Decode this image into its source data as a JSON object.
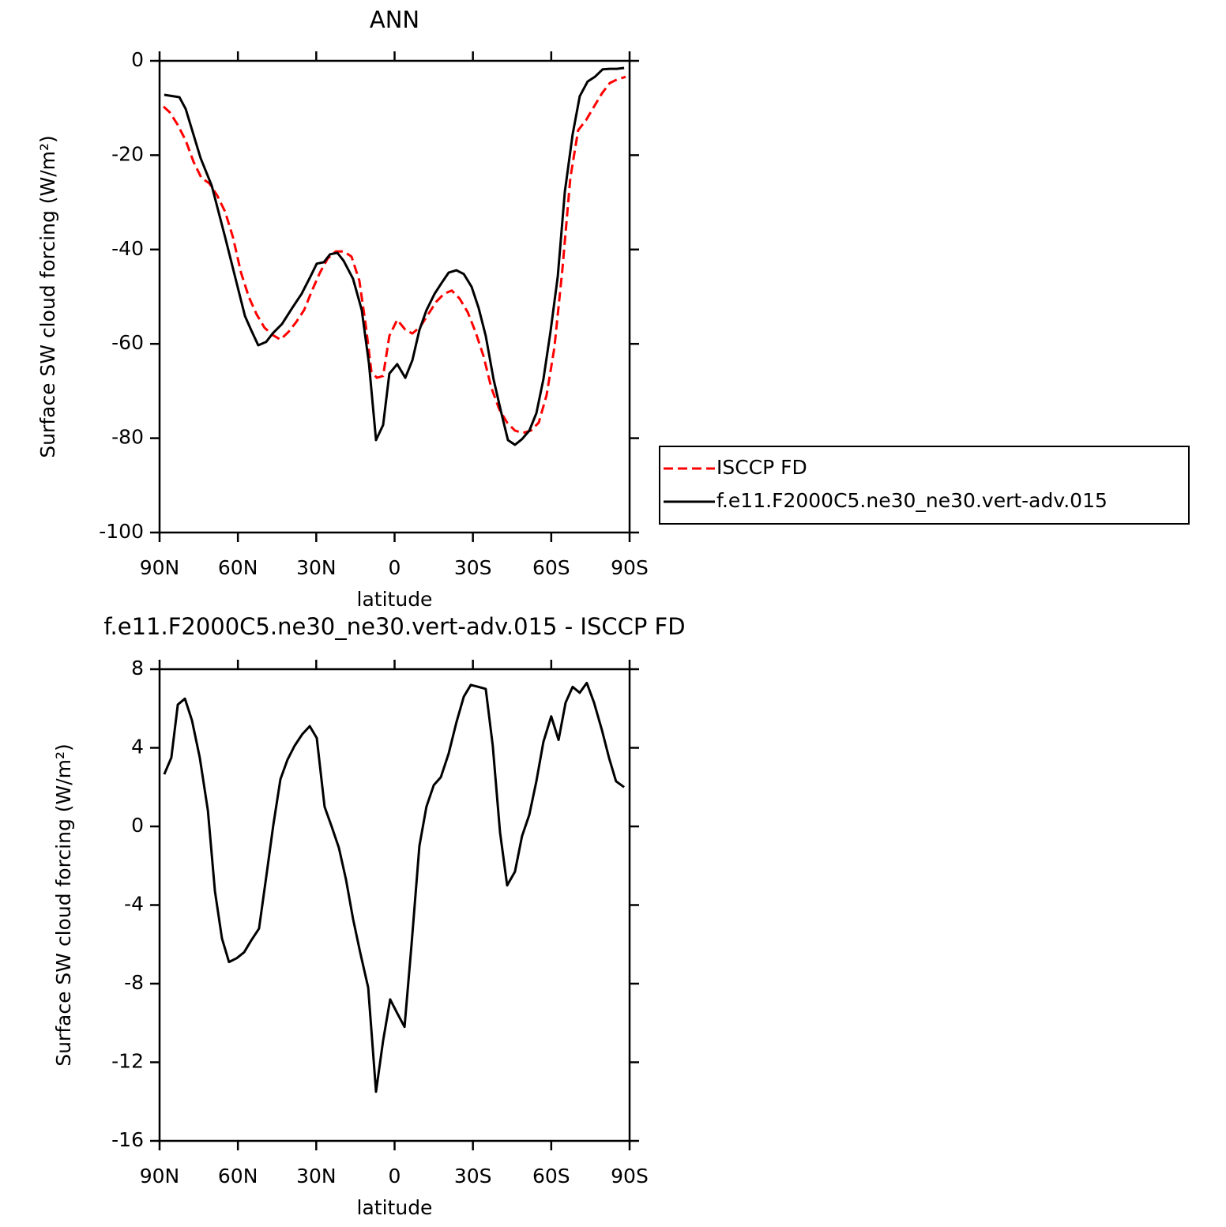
{
  "chart_data": [
    {
      "type": "line",
      "title": "ANN",
      "x_label": "latitude",
      "y_label": "Surface SW cloud forcing (W/m²)",
      "xlim": [
        90,
        -90
      ],
      "xticks": [
        {
          "value": 90,
          "label": "90N"
        },
        {
          "value": 60,
          "label": "60N"
        },
        {
          "value": 30,
          "label": "30N"
        },
        0,
        {
          "value": -30,
          "label": "30S"
        },
        {
          "value": -60,
          "label": "60S"
        },
        {
          "value": -90,
          "label": "90S"
        }
      ],
      "ylim": [
        -100,
        0
      ],
      "yticks": [
        -100,
        -80,
        -60,
        -40,
        -20,
        0
      ],
      "legend": "right",
      "series": [
        {
          "name": "ISCCP FD",
          "color": "#ff0000",
          "dash": true,
          "x": [
            88.5,
            86.1,
            83.0,
            80.0,
            77.0,
            74.0,
            70.9,
            67.9,
            64.9,
            61.9,
            58.8,
            55.8,
            52.8,
            49.8,
            46.7,
            43.7,
            40.7,
            37.7,
            34.6,
            31.6,
            28.6,
            25.6,
            22.5,
            19.5,
            16.5,
            13.5,
            11.1,
            8.9,
            6.8,
            4.4,
            2.0,
            -1.0,
            -4.1,
            -6.8,
            -9.8,
            -12.8,
            -15.9,
            -18.9,
            -21.9,
            -24.9,
            -28.0,
            -31.0,
            -34.0,
            -37.0,
            -40.1,
            -43.1,
            -46.1,
            -49.1,
            -52.2,
            -55.2,
            -58.2,
            -61.2,
            -64.3,
            -67.3,
            -70.3,
            -73.3,
            -76.4,
            -79.4,
            -82.4,
            -85.4,
            -88.5
          ],
          "values": [
            -9.7,
            -10.9,
            -13.6,
            -16.9,
            -21.4,
            -24.8,
            -26.0,
            -28.6,
            -32.0,
            -37.4,
            -44.9,
            -50.1,
            -53.8,
            -56.6,
            -58.1,
            -59.1,
            -57.5,
            -55.4,
            -52.8,
            -48.7,
            -44.9,
            -41.9,
            -40.4,
            -40.4,
            -41.5,
            -46.6,
            -55.8,
            -65.8,
            -67.2,
            -66.8,
            -58.3,
            -54.9,
            -57.0,
            -57.8,
            -56.4,
            -53.8,
            -51.1,
            -49.4,
            -48.7,
            -50.4,
            -53.3,
            -57.5,
            -62.5,
            -69.2,
            -73.9,
            -76.7,
            -78.4,
            -78.9,
            -78.4,
            -76.7,
            -70.9,
            -60.8,
            -44.1,
            -24.8,
            -14.7,
            -12.6,
            -9.7,
            -6.9,
            -4.7,
            -3.9,
            -3.4
          ]
        },
        {
          "name": "f.e11.F2000C5.ne30_ne30.vert-adv.015",
          "color": "#000000",
          "dash": false,
          "x": [
            88.2,
            82.4,
            80.0,
            74.3,
            70.0,
            64.9,
            57.3,
            54.9,
            52.2,
            49.2,
            46.7,
            43.1,
            39.2,
            35.6,
            32.2,
            29.8,
            27.1,
            24.7,
            21.9,
            19.5,
            15.9,
            12.6,
            9.8,
            7.1,
            4.4,
            2.0,
            -1.0,
            -4.1,
            -6.8,
            -9.5,
            -12.2,
            -15.3,
            -18.0,
            -20.7,
            -23.7,
            -26.5,
            -29.5,
            -32.2,
            -34.9,
            -37.9,
            -40.7,
            -43.4,
            -46.1,
            -48.8,
            -51.6,
            -54.3,
            -57.0,
            -59.7,
            -62.5,
            -65.2,
            -68.2,
            -70.9,
            -73.9,
            -76.7,
            -79.7,
            -82.4,
            -85.1,
            -87.9
          ],
          "values": [
            -7.2,
            -7.7,
            -10.2,
            -20.6,
            -26.5,
            -37.4,
            -54.1,
            -57.1,
            -60.3,
            -59.6,
            -57.8,
            -55.8,
            -52.4,
            -49.4,
            -45.7,
            -43.0,
            -42.7,
            -41.0,
            -40.7,
            -42.4,
            -46.2,
            -52.8,
            -64.2,
            -80.4,
            -77.2,
            -66.3,
            -64.3,
            -67.2,
            -63.5,
            -57.1,
            -52.9,
            -49.4,
            -47.1,
            -44.9,
            -44.4,
            -45.2,
            -47.9,
            -52.4,
            -58.3,
            -67.5,
            -74.2,
            -80.4,
            -81.4,
            -80.2,
            -78.4,
            -74.7,
            -67.5,
            -57.5,
            -45.7,
            -27.8,
            -15.6,
            -7.5,
            -4.4,
            -3.4,
            -1.8,
            -1.7,
            -1.7,
            -1.5
          ]
        }
      ]
    },
    {
      "type": "line",
      "title": "f.e11.F2000C5.ne30_ne30.vert-adv.015 - ISCCP FD",
      "x_label": "latitude",
      "y_label": "Surface SW cloud forcing (W/m²)",
      "xlim": [
        90,
        -90
      ],
      "xticks": [
        {
          "value": 90,
          "label": "90N"
        },
        {
          "value": 60,
          "label": "60N"
        },
        {
          "value": 30,
          "label": "30N"
        },
        0,
        {
          "value": -30,
          "label": "30S"
        },
        {
          "value": -60,
          "label": "60S"
        },
        {
          "value": -90,
          "label": "90S"
        }
      ],
      "ylim": [
        -16,
        8
      ],
      "yticks": [
        -16,
        -12,
        -8,
        -4,
        0,
        4,
        8
      ],
      "series": [
        {
          "color": "#000000",
          "dash": false,
          "x": [
            88.2,
            85.5,
            83.0,
            80.3,
            77.6,
            74.6,
            71.5,
            68.8,
            66.1,
            63.4,
            60.4,
            57.6,
            54.9,
            51.9,
            49.2,
            46.4,
            43.7,
            41.0,
            38.3,
            35.3,
            32.5,
            29.8,
            26.8,
            24.1,
            21.3,
            18.6,
            15.9,
            13.2,
            10.1,
            7.1,
            4.4,
            1.7,
            -1.0,
            -3.8,
            -6.5,
            -9.5,
            -12.2,
            -15.0,
            -17.7,
            -20.7,
            -23.7,
            -26.5,
            -29.2,
            -32.2,
            -34.9,
            -37.6,
            -40.4,
            -43.1,
            -46.1,
            -48.8,
            -51.6,
            -54.3,
            -57.0,
            -60.0,
            -62.8,
            -65.5,
            -68.2,
            -70.9,
            -73.6,
            -76.4,
            -79.4,
            -82.1,
            -84.8,
            -87.9
          ],
          "values": [
            2.65,
            3.5,
            6.2,
            6.5,
            5.4,
            3.5,
            0.8,
            -3.3,
            -5.7,
            -6.9,
            -6.7,
            -6.4,
            -5.8,
            -5.2,
            -2.6,
            0.1,
            2.4,
            3.4,
            4.1,
            4.7,
            5.1,
            4.5,
            1.0,
            0.0,
            -1.1,
            -2.7,
            -4.7,
            -6.4,
            -8.2,
            -13.5,
            -10.9,
            -8.8,
            -9.5,
            -10.2,
            -6.0,
            -1.0,
            1.0,
            2.1,
            2.5,
            3.7,
            5.3,
            6.6,
            7.2,
            7.1,
            7.0,
            4.1,
            -0.3,
            -3.0,
            -2.3,
            -0.5,
            0.6,
            2.3,
            4.3,
            5.6,
            4.4,
            6.3,
            7.1,
            6.8,
            7.3,
            6.3,
            4.9,
            3.5,
            2.3,
            2.0
          ]
        }
      ]
    }
  ]
}
